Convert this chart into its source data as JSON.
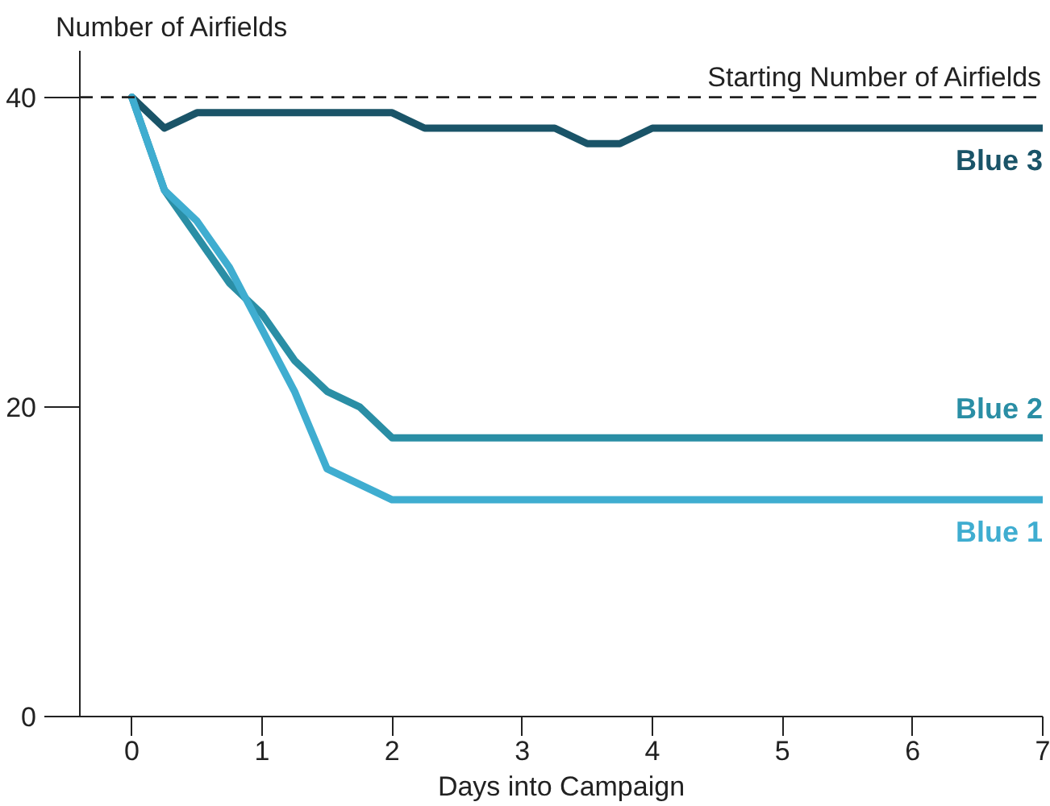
{
  "chart_data": {
    "type": "line",
    "ylabel": "Number of Airfields",
    "xlabel": "Days into Campaign",
    "x": [
      0,
      0.25,
      0.5,
      0.75,
      1,
      1.25,
      1.5,
      1.75,
      2,
      2.25,
      2.5,
      2.75,
      3,
      3.25,
      3.5,
      3.75,
      4,
      4.25,
      4.5,
      4.75,
      5,
      5.25,
      5.5,
      5.75,
      6,
      6.25,
      6.5,
      6.75,
      7
    ],
    "series": [
      {
        "name": "Blue 3",
        "color": "#1a5468",
        "values": [
          40,
          38,
          39,
          39,
          39,
          39,
          39,
          39,
          39,
          38,
          38,
          38,
          38,
          38,
          37,
          37,
          38,
          38,
          38,
          38,
          38,
          38,
          38,
          38,
          38,
          38,
          38,
          38,
          38
        ]
      },
      {
        "name": "Blue 2",
        "color": "#2a8ea5",
        "values": [
          40,
          34,
          31,
          28,
          26,
          23,
          21,
          20,
          18,
          18,
          18,
          18,
          18,
          18,
          18,
          18,
          18,
          18,
          18,
          18,
          18,
          18,
          18,
          18,
          18,
          18,
          18,
          18,
          18
        ]
      },
      {
        "name": "Blue 1",
        "color": "#3fadd0",
        "values": [
          40,
          34,
          32,
          29,
          25,
          21,
          16,
          15,
          14,
          14,
          14,
          14,
          14,
          14,
          14,
          14,
          14,
          14,
          14,
          14,
          14,
          14,
          14,
          14,
          14,
          14,
          14,
          14,
          14
        ]
      }
    ],
    "xlim": [
      -0.4,
      7
    ],
    "ylim": [
      0,
      43
    ],
    "xticks": [
      0,
      1,
      2,
      3,
      4,
      5,
      6,
      7
    ],
    "yticks": [
      0,
      20,
      40
    ],
    "ref_lines": [
      {
        "axis": "y",
        "value": 40,
        "label": "Starting Number of Airfields",
        "color": "#222222",
        "line_style": "dashed"
      }
    ],
    "grid": false,
    "legend": false,
    "marker": "none",
    "line_style": "solid"
  }
}
